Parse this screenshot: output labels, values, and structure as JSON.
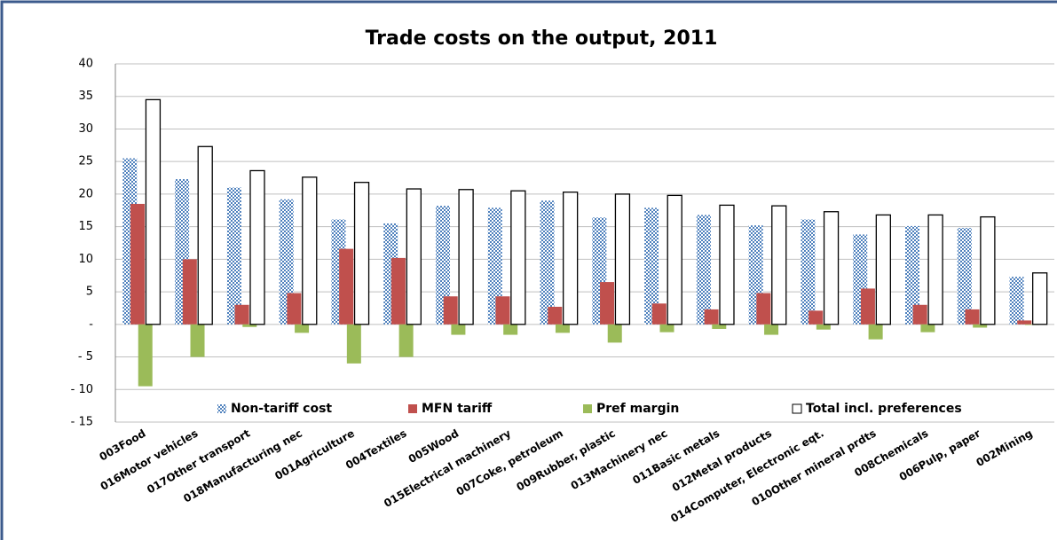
{
  "chart_data": {
    "type": "bar",
    "title": "Trade costs on the output, 2011",
    "categories": [
      "003Food",
      "016Motor vehicles",
      "017Other transport",
      "018Manufacturing nec",
      "001Agriculture",
      "004Textiles",
      "005Wood",
      "015Electrical machinery",
      "007Coke, petroleum",
      "009Rubber, plastic",
      "013Machinery nec",
      "011Basic metals",
      "012Metal products",
      "014Computer, Electronic eqt.",
      "010Other mineral prdts",
      "008Chemicals",
      "006Pulp, paper",
      "002Mining"
    ],
    "series": [
      {
        "name": "Non-tariff cost",
        "color": "#4f81bd",
        "hatch": true,
        "values": [
          25.5,
          22.3,
          21,
          19.2,
          16.1,
          15.5,
          18.2,
          17.9,
          19,
          16.4,
          17.9,
          16.8,
          15.2,
          16.1,
          13.8,
          15.1,
          14.8,
          7.3
        ]
      },
      {
        "name": "MFN tariff",
        "color": "#c0504d",
        "values": [
          18.5,
          10,
          3,
          4.8,
          11.6,
          10.2,
          4.3,
          4.3,
          2.7,
          6.5,
          3.2,
          2.3,
          4.8,
          2.1,
          5.5,
          3,
          2.3,
          0.6
        ]
      },
      {
        "name": "Pref margin",
        "color": "#9bbb59",
        "values": [
          -9.5,
          -5,
          -0.4,
          -1.3,
          -6,
          -5,
          -1.6,
          -1.6,
          -1.3,
          -2.8,
          -1.2,
          -0.7,
          -1.6,
          -0.8,
          -2.3,
          -1.2,
          -0.5,
          -0.1
        ]
      },
      {
        "name": "Total incl. preferences",
        "color": "#ffffff",
        "stroke": "#000000",
        "values": [
          34.5,
          27.3,
          23.6,
          22.6,
          21.8,
          20.8,
          20.7,
          20.5,
          20.3,
          20,
          19.8,
          18.3,
          18.2,
          17.3,
          16.8,
          16.8,
          16.5,
          7.9
        ]
      }
    ],
    "ylim": [
      -15,
      40
    ],
    "yticks": [
      {
        "value": -15,
        "label": "- 15"
      },
      {
        "value": -10,
        "label": "- 10"
      },
      {
        "value": -5,
        "label": "- 5"
      },
      {
        "value": 0,
        "label": "-"
      },
      5,
      10,
      15,
      20,
      25,
      30,
      35,
      40
    ],
    "grid": true,
    "legend": "bottom"
  }
}
